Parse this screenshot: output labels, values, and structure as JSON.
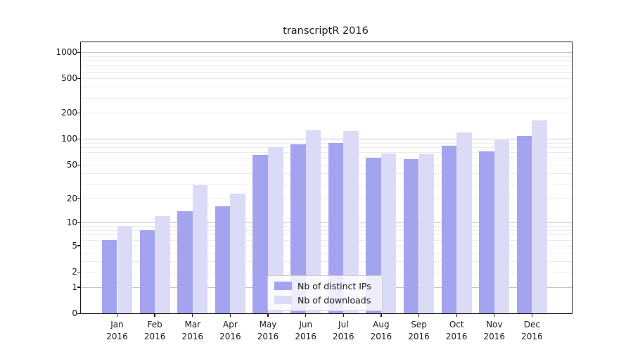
{
  "chart_data": {
    "type": "bar",
    "title": "transcriptR 2016",
    "months": [
      "Jan",
      "Feb",
      "Mar",
      "Apr",
      "May",
      "Jun",
      "Jul",
      "Aug",
      "Sep",
      "Oct",
      "Nov",
      "Dec"
    ],
    "year_label": "2016",
    "categories": [
      "Jan 2016",
      "Feb 2016",
      "Mar 2016",
      "Apr 2016",
      "May 2016",
      "Jun 2016",
      "Jul 2016",
      "Aug 2016",
      "Sep 2016",
      "Oct 2016",
      "Nov 2016",
      "Dec 2016"
    ],
    "series": [
      {
        "name": "Nb of distinct IPs",
        "color": "#a3a3ef",
        "values": [
          6,
          8,
          14,
          16,
          65,
          86,
          90,
          60,
          58,
          84,
          72,
          108
        ]
      },
      {
        "name": "Nb of downloads",
        "color": "#dbdbf8",
        "values": [
          9,
          12,
          29,
          23,
          81,
          126,
          124,
          68,
          67,
          120,
          97,
          164
        ]
      }
    ],
    "y_scale": "log1p",
    "y_ticks": [
      0,
      1,
      2,
      5,
      10,
      20,
      50,
      100,
      200,
      500,
      1000
    ],
    "ylim": [
      0,
      1305
    ],
    "xlabel": "",
    "ylabel": "",
    "grid": true,
    "legend_position": "lower center",
    "colors": {
      "major_gridline": "#c3c3c3",
      "minor_gridline": "#ebebeb",
      "axis_frame": "#1a1a1a",
      "background": "#ffffff"
    }
  }
}
